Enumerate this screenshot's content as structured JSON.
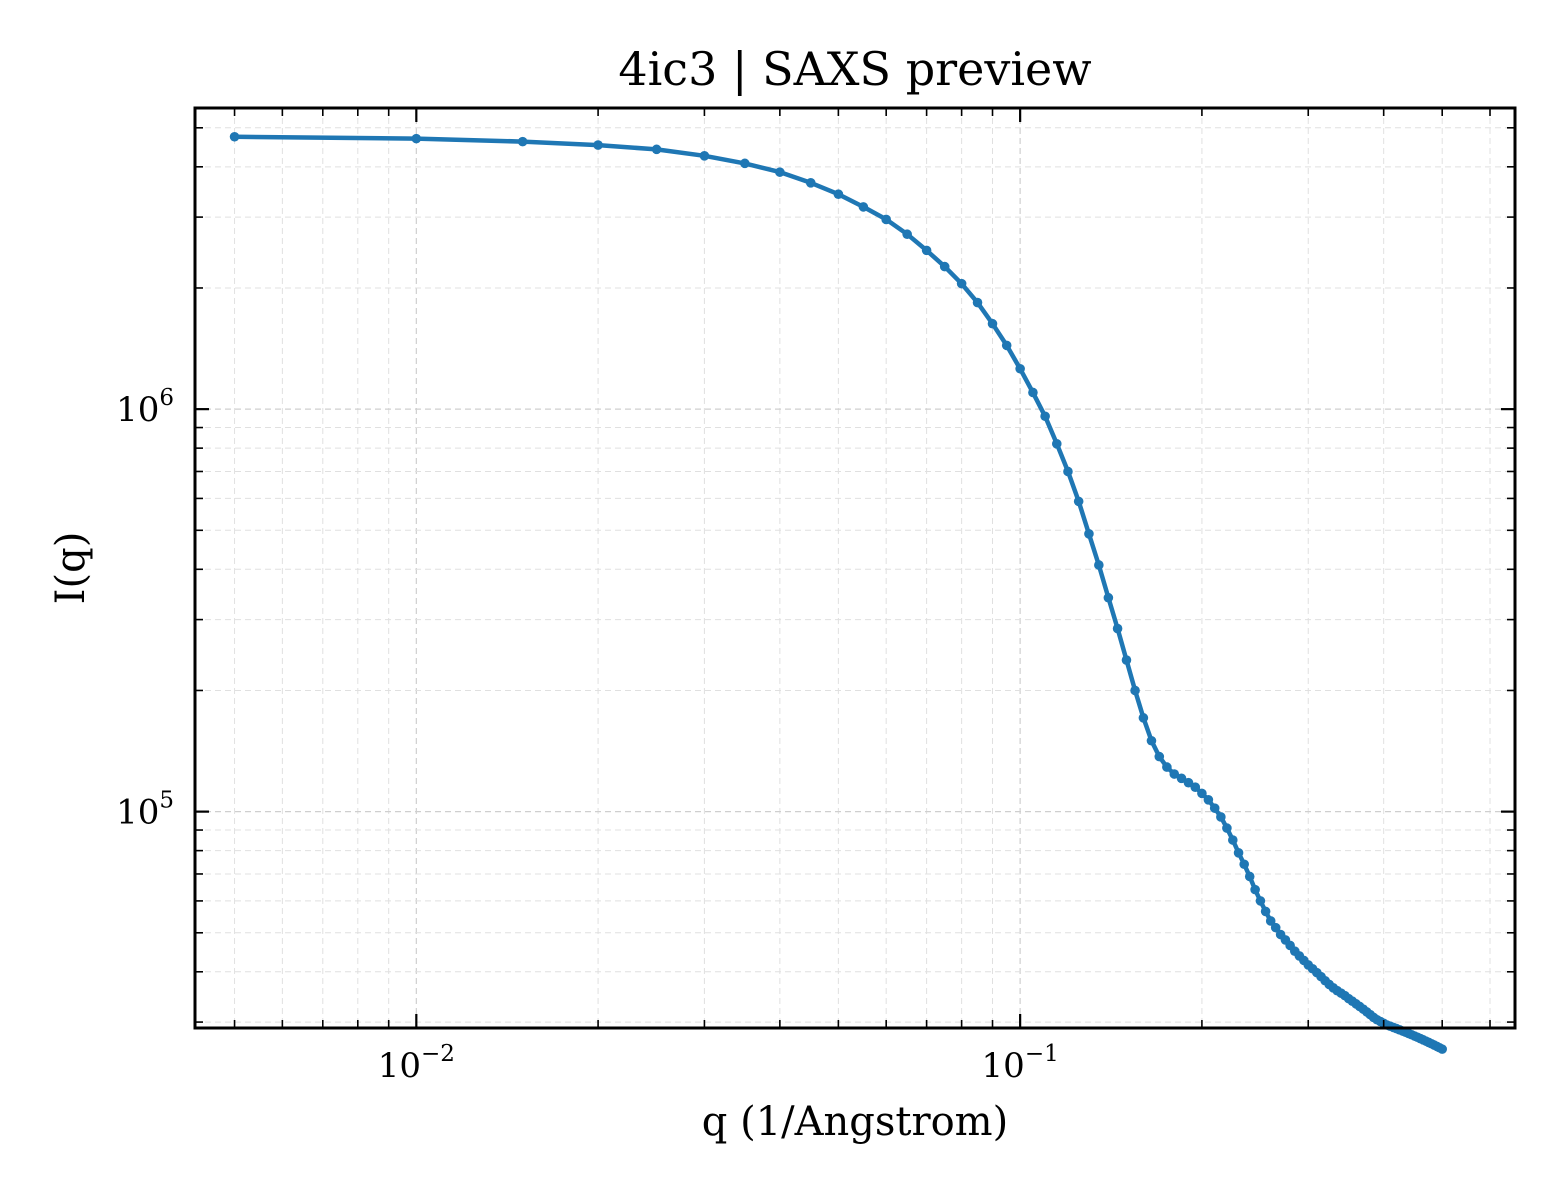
{
  "chart_data": {
    "type": "line",
    "title": "4ic3 | SAXS preview",
    "xlabel": "q (1/Angstrom)",
    "ylabel": "I(q)",
    "xscale": "log",
    "yscale": "log",
    "xlim": [
      0.0043,
      0.66
    ],
    "ylim": [
      29000,
      5600000
    ],
    "grid": true,
    "x_ticks": [
      {
        "value": 0.01,
        "base": "10",
        "exp": "−2"
      },
      {
        "value": 0.1,
        "base": "10",
        "exp": "−1"
      }
    ],
    "y_ticks": [
      {
        "value": 100000,
        "base": "10",
        "exp": "5"
      },
      {
        "value": 1000000,
        "base": "10",
        "exp": "6"
      }
    ],
    "line_color": "#1f77b4",
    "series": [
      {
        "x": [
          0.005,
          0.01,
          0.015,
          0.02,
          0.025,
          0.03,
          0.035,
          0.04,
          0.045,
          0.05,
          0.055,
          0.06,
          0.065,
          0.07,
          0.075,
          0.08,
          0.085,
          0.09,
          0.095,
          0.1,
          0.105,
          0.11,
          0.115,
          0.12,
          0.125,
          0.13,
          0.135,
          0.14,
          0.145,
          0.15,
          0.155,
          0.16,
          0.165,
          0.17,
          0.175,
          0.18,
          0.185,
          0.19,
          0.195,
          0.2,
          0.205,
          0.21,
          0.215,
          0.22,
          0.225,
          0.23,
          0.235,
          0.24,
          0.245,
          0.25,
          0.255,
          0.26,
          0.265,
          0.27,
          0.275,
          0.28,
          0.285,
          0.29,
          0.295,
          0.3,
          0.305,
          0.31,
          0.315,
          0.32,
          0.325,
          0.33,
          0.335,
          0.34,
          0.345,
          0.35,
          0.355,
          0.36,
          0.365,
          0.37,
          0.375,
          0.38,
          0.385,
          0.39,
          0.395,
          0.4,
          0.405,
          0.41,
          0.415,
          0.42,
          0.425,
          0.43,
          0.435,
          0.44,
          0.445,
          0.45,
          0.455,
          0.46,
          0.465,
          0.47,
          0.475,
          0.48,
          0.485,
          0.49,
          0.495,
          0.5
        ],
        "y": [
          4750000,
          4700000,
          4620000,
          4530000,
          4420000,
          4260000,
          4080000,
          3880000,
          3650000,
          3420000,
          3180000,
          2960000,
          2720000,
          2480000,
          2260000,
          2050000,
          1840000,
          1630000,
          1440000,
          1260000,
          1100000,
          960000,
          820000,
          700000,
          590000,
          490000,
          410000,
          340000,
          285000,
          238000,
          200000,
          171000,
          150000,
          137000,
          129000,
          124000,
          121000,
          118000,
          115000,
          111000,
          107000,
          102000,
          97000,
          91000,
          85000,
          79000,
          74000,
          69000,
          64000,
          60000,
          56500,
          53500,
          51500,
          49500,
          48000,
          46500,
          45000,
          43800,
          42700,
          41600,
          40700,
          39800,
          38900,
          38000,
          37200,
          36500,
          35900,
          35400,
          34900,
          34300,
          33800,
          33300,
          32800,
          32300,
          31800,
          31300,
          30800,
          30400,
          30100,
          29800,
          29500,
          29300,
          29100,
          28900,
          28700,
          28500,
          28300,
          28100,
          27900,
          27700,
          27500,
          27300,
          27100,
          26900,
          26700,
          26500,
          26300,
          26100,
          25900,
          25700
        ]
      }
    ]
  }
}
